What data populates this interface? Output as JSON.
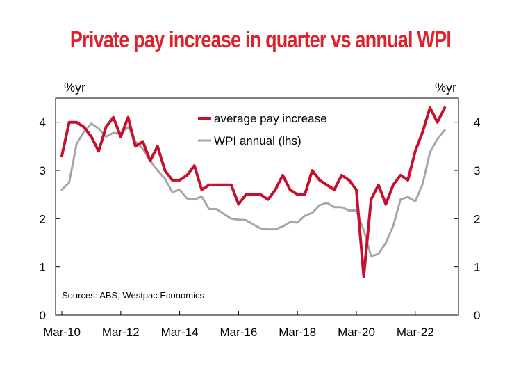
{
  "chart_data": {
    "type": "line",
    "title": "Private pay increase in quarter vs annual WPI",
    "title_color": "#e0202a",
    "left_axis_unit": "%yr",
    "right_axis_unit": "%yr",
    "source": "Sources: ABS, Westpac Economics",
    "ylim": [
      0,
      4.5
    ],
    "y_ticks": [
      "0",
      "1",
      "2",
      "3",
      "4"
    ],
    "x_ticks": [
      "Mar-10",
      "Mar-12",
      "Mar-14",
      "Mar-16",
      "Mar-18",
      "Mar-20",
      "Mar-22"
    ],
    "legend_placement": "top-center",
    "grid": false,
    "series": [
      {
        "name": "average pay increase",
        "color": "#c8102e",
        "values": [
          3.3,
          4.0,
          4.0,
          3.9,
          3.7,
          3.4,
          3.9,
          4.1,
          3.7,
          4.1,
          3.5,
          3.6,
          3.2,
          3.5,
          3.0,
          2.8,
          2.8,
          2.9,
          3.1,
          2.6,
          2.7,
          2.7,
          2.7,
          2.7,
          2.3,
          2.5,
          2.5,
          2.5,
          2.4,
          2.6,
          2.9,
          2.6,
          2.5,
          2.5,
          3.0,
          2.8,
          2.7,
          2.6,
          2.9,
          2.8,
          2.6,
          0.8,
          2.4,
          2.7,
          2.3,
          2.7,
          2.9,
          2.8,
          3.4,
          3.8,
          4.3,
          4.0,
          4.3
        ]
      },
      {
        "name": "WPI annual (lhs)",
        "color": "#a6a6a6",
        "values": [
          2.6,
          2.75,
          3.55,
          3.8,
          3.97,
          3.87,
          3.7,
          3.78,
          3.75,
          3.9,
          3.6,
          3.45,
          3.2,
          3.0,
          2.83,
          2.55,
          2.6,
          2.42,
          2.4,
          2.46,
          2.2,
          2.2,
          2.1,
          2.0,
          1.98,
          1.97,
          1.88,
          1.8,
          1.78,
          1.78,
          1.84,
          1.93,
          1.92,
          2.06,
          2.12,
          2.28,
          2.33,
          2.24,
          2.24,
          2.17,
          2.17,
          1.76,
          1.22,
          1.27,
          1.5,
          1.85,
          2.4,
          2.45,
          2.36,
          2.72,
          3.38,
          3.65,
          3.84
        ]
      }
    ]
  }
}
